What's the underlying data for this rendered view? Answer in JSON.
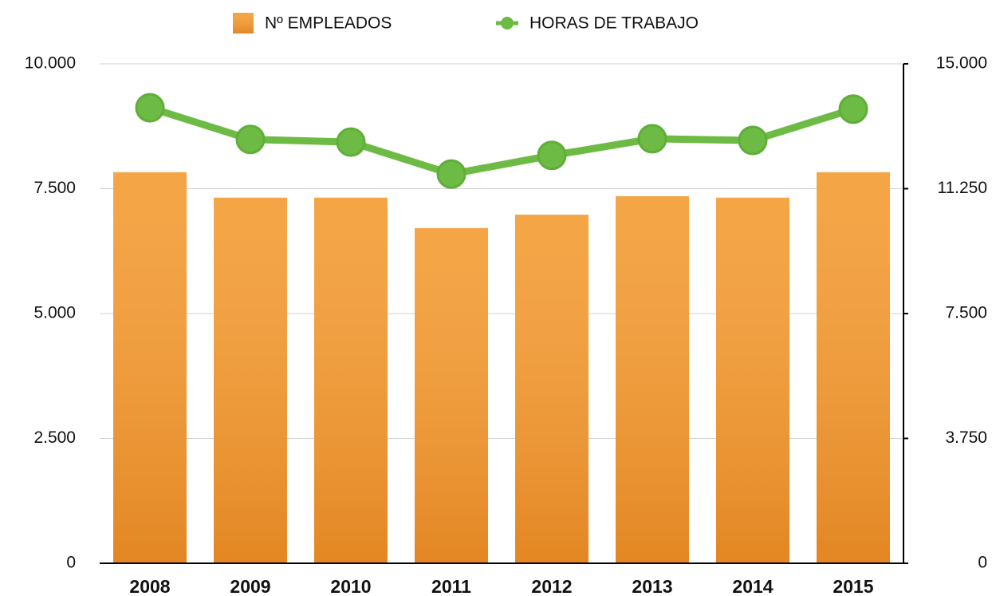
{
  "chart_data": {
    "type": "bar-line",
    "categories": [
      "2008",
      "2009",
      "2010",
      "2011",
      "2012",
      "2013",
      "2014",
      "2015"
    ],
    "series": [
      {
        "name": "Nº EMPLEADOS",
        "color": "#f39a2e",
        "type": "bar",
        "axis": "y",
        "values": [
          7830,
          7320,
          7320,
          6710,
          6980,
          7350,
          7320,
          7830
        ]
      },
      {
        "name": "HORAS DE TRABAJO",
        "color": "#6dbb45",
        "type": "line",
        "axis": "y2",
        "values": [
          13680,
          12730,
          12650,
          11690,
          12250,
          12750,
          12700,
          13640
        ]
      }
    ],
    "ylim": [
      0,
      10000
    ],
    "yticks": [
      0,
      {
        "value": 2500,
        "label": "2.500"
      },
      {
        "value": 5000,
        "label": "5.000"
      },
      {
        "value": 7500,
        "label": "7.500"
      },
      {
        "value": 10000,
        "label": "10.000"
      }
    ],
    "y2lim": [
      0,
      15000
    ],
    "y2ticks": [
      0,
      {
        "value": 3750,
        "label": "3.750"
      },
      {
        "value": 7500,
        "label": "7.500"
      },
      {
        "value": 11250,
        "label": "11.250"
      },
      {
        "value": 15000,
        "label": "15.000"
      }
    ],
    "grid": true,
    "legend": "top"
  }
}
